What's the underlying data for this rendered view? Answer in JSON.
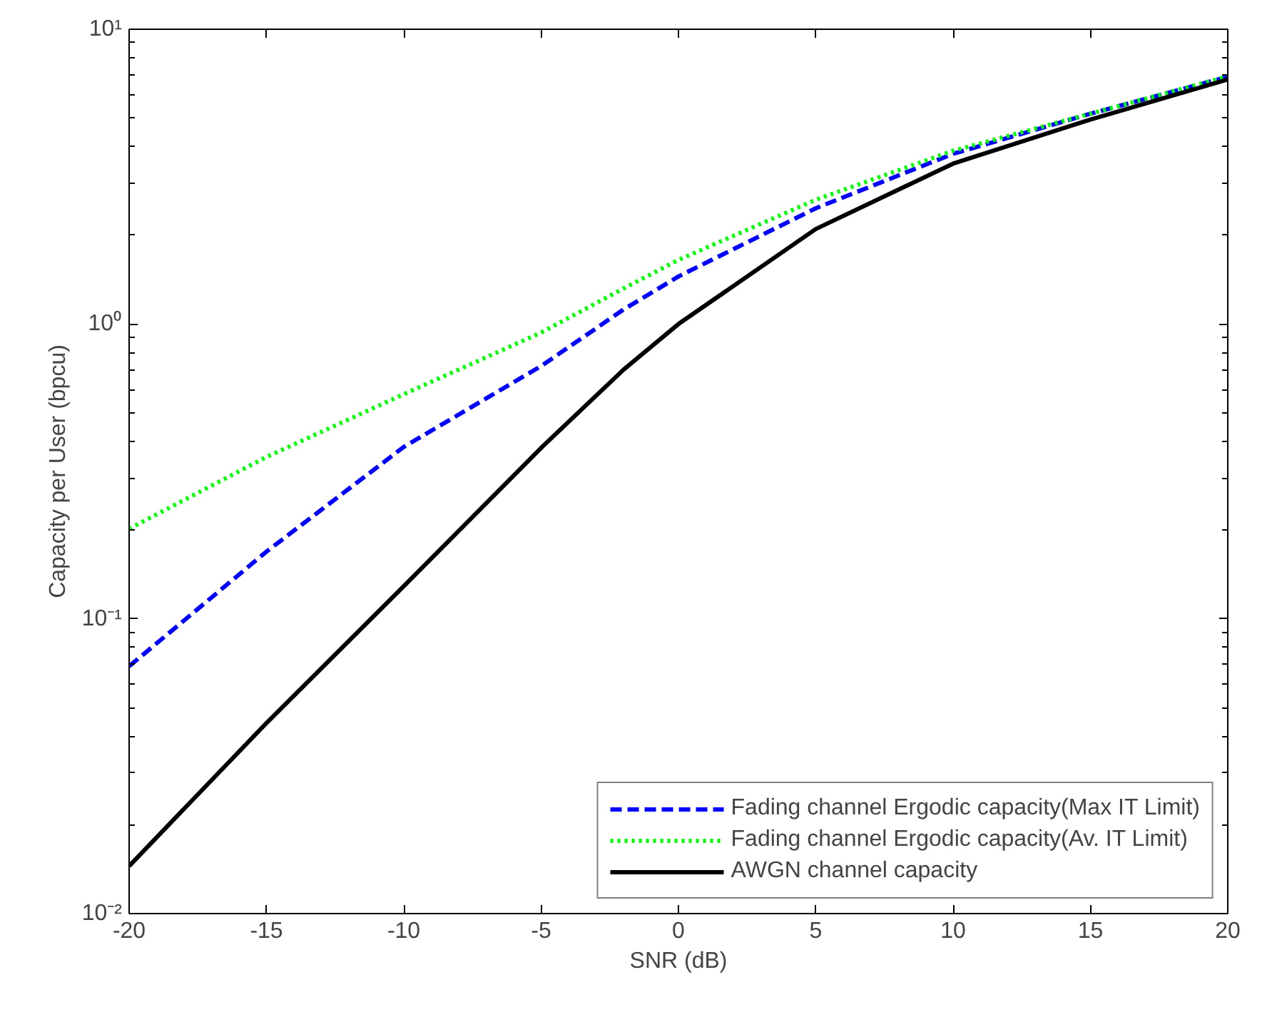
{
  "chart_data": {
    "type": "line",
    "xlabel": "SNR (dB)",
    "ylabel": "Capacity per User (bpcu)",
    "log": "y",
    "grid": false,
    "legend": "bottom right",
    "xlim": [
      -20,
      20
    ],
    "xticks": [
      -20,
      -15,
      -10,
      -5,
      0,
      5,
      10,
      15,
      20
    ],
    "ylim": [
      0.01,
      10
    ],
    "yticks": [
      {
        "value": 0.01,
        "label": "10⁻²"
      },
      {
        "value": 0.1,
        "label": "10⁻¹"
      },
      {
        "value": 1,
        "label": "10⁰"
      },
      {
        "value": 10,
        "label": "10¹"
      }
    ],
    "x": [
      -20,
      -15,
      -10,
      -5,
      -2,
      0,
      5,
      10,
      15,
      20
    ],
    "series": [
      {
        "name": "Fading channel Ergodic capacity(Max IT Limit)",
        "color": "#0000ff",
        "line_style": "dashed",
        "values": [
          0.069,
          0.169,
          0.383,
          0.72,
          1.12,
          1.45,
          2.47,
          3.78,
          5.17,
          6.9
        ]
      },
      {
        "name": "Fading channel Ergodic capacity(Av. IT Limit)",
        "color": "#00ff00",
        "line_style": "dotted",
        "values": [
          0.202,
          0.354,
          0.578,
          0.935,
          1.32,
          1.65,
          2.64,
          3.87,
          5.17,
          6.92
        ]
      },
      {
        "name": "AWGN channel capacity",
        "color": "#000000",
        "line_style": "solid",
        "values": [
          0.0145,
          0.0443,
          0.129,
          0.38,
          0.7,
          1.0,
          2.1,
          3.5,
          4.94,
          6.76
        ]
      }
    ]
  }
}
